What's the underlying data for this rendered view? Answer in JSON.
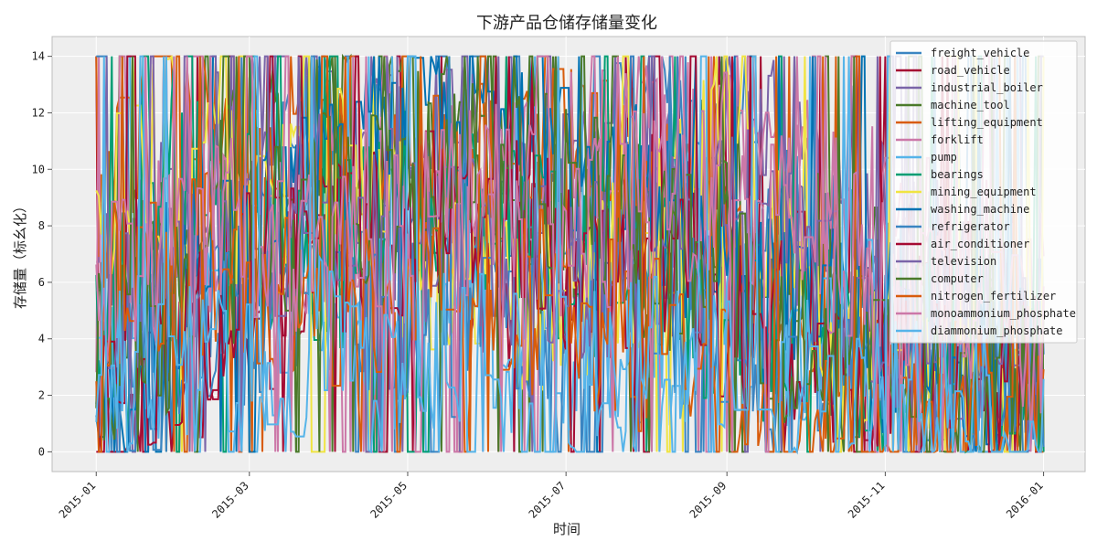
{
  "chart_data": {
    "type": "line",
    "title": "下游产品仓储存储量变化",
    "xlabel": "时间",
    "ylabel": "存储量（标幺化）",
    "xlim": [
      "2014-12-15",
      "2016-01-17"
    ],
    "ylim": [
      -0.7,
      14.7
    ],
    "x_ticks": [
      "2015-01",
      "2015-03",
      "2015-05",
      "2015-07",
      "2015-09",
      "2015-11",
      "2016-01"
    ],
    "y_ticks": [
      0,
      2,
      4,
      6,
      8,
      10,
      12,
      14
    ],
    "grid": true,
    "legend_position": "top-right",
    "x_start": "2015-01-01",
    "x_end": "2016-01-01",
    "series": [
      {
        "name": "freight_vehicle",
        "color": "#3a85c2",
        "anchors": [
          2,
          5,
          8,
          11,
          10,
          6,
          8,
          12,
          11,
          7,
          5,
          3,
          4
        ]
      },
      {
        "name": "road_vehicle",
        "color": "#a50b33",
        "anchors": [
          1,
          3,
          5,
          8,
          9,
          6,
          7,
          8,
          6,
          5,
          6,
          5,
          3
        ]
      },
      {
        "name": "industrial_boiler",
        "color": "#7a64a8",
        "anchors": [
          6,
          9,
          12,
          11,
          10,
          11,
          9,
          8,
          12,
          10,
          9,
          5,
          2
        ]
      },
      {
        "name": "machine_tool",
        "color": "#4b7a2a",
        "anchors": [
          5,
          8,
          10,
          12,
          11,
          10,
          9,
          8,
          10,
          7,
          5,
          3,
          2
        ]
      },
      {
        "name": "lifting_equipment",
        "color": "#d85c0c",
        "anchors": [
          9,
          12,
          11,
          10,
          9,
          10,
          11,
          9,
          6,
          3,
          2,
          1,
          1
        ]
      },
      {
        "name": "forklift",
        "color": "#cc78a8",
        "anchors": [
          6,
          8,
          7,
          9,
          10,
          9,
          10,
          11,
          10,
          9,
          8,
          7,
          5
        ]
      },
      {
        "name": "pump",
        "color": "#56b4e9",
        "anchors": [
          3,
          4,
          4,
          5,
          4,
          5,
          4,
          4,
          5,
          3,
          5,
          3,
          2
        ]
      },
      {
        "name": "bearings",
        "color": "#009e73",
        "anchors": [
          4,
          10,
          8,
          7,
          9,
          8,
          7,
          6,
          5,
          4,
          3,
          3,
          2
        ]
      },
      {
        "name": "mining_equipment",
        "color": "#f0e442",
        "anchors": [
          9,
          11,
          8,
          10,
          7,
          6,
          5,
          7,
          13,
          4,
          3,
          2,
          1
        ]
      },
      {
        "name": "washing_machine",
        "color": "#0072b2",
        "anchors": [
          3,
          6,
          8,
          9,
          12,
          13,
          11,
          9,
          7,
          5,
          4,
          3,
          2
        ]
      },
      {
        "name": "refrigerator",
        "color": "#3a85c2",
        "anchors": [
          2,
          4,
          5,
          6,
          5,
          4,
          5,
          6,
          4,
          3,
          4,
          3,
          2
        ]
      },
      {
        "name": "air_conditioner",
        "color": "#a50b33",
        "anchors": [
          2,
          4,
          6,
          7,
          8,
          9,
          7,
          6,
          5,
          4,
          3,
          2,
          2
        ]
      },
      {
        "name": "television",
        "color": "#7a64a8",
        "anchors": [
          4,
          6,
          8,
          9,
          8,
          7,
          6,
          7,
          8,
          6,
          5,
          4,
          3
        ]
      },
      {
        "name": "computer",
        "color": "#4b7a2a",
        "anchors": [
          3,
          5,
          7,
          9,
          10,
          11,
          9,
          7,
          6,
          3,
          2,
          2,
          2
        ]
      },
      {
        "name": "nitrogen_fertilizer",
        "color": "#d85c0c",
        "anchors": [
          5,
          7,
          6,
          5,
          4,
          6,
          5,
          4,
          3,
          1,
          1,
          2,
          1
        ]
      },
      {
        "name": "monoammonium_phosphate",
        "color": "#cc78a8",
        "anchors": [
          5,
          7,
          8,
          7,
          8,
          9,
          8,
          9,
          10,
          8,
          7,
          5,
          4
        ]
      },
      {
        "name": "diammonium_phosphate",
        "color": "#56b4e9",
        "anchors": [
          2,
          3,
          3,
          4,
          3,
          3,
          2,
          3,
          3,
          2,
          2,
          1,
          1
        ]
      }
    ]
  }
}
